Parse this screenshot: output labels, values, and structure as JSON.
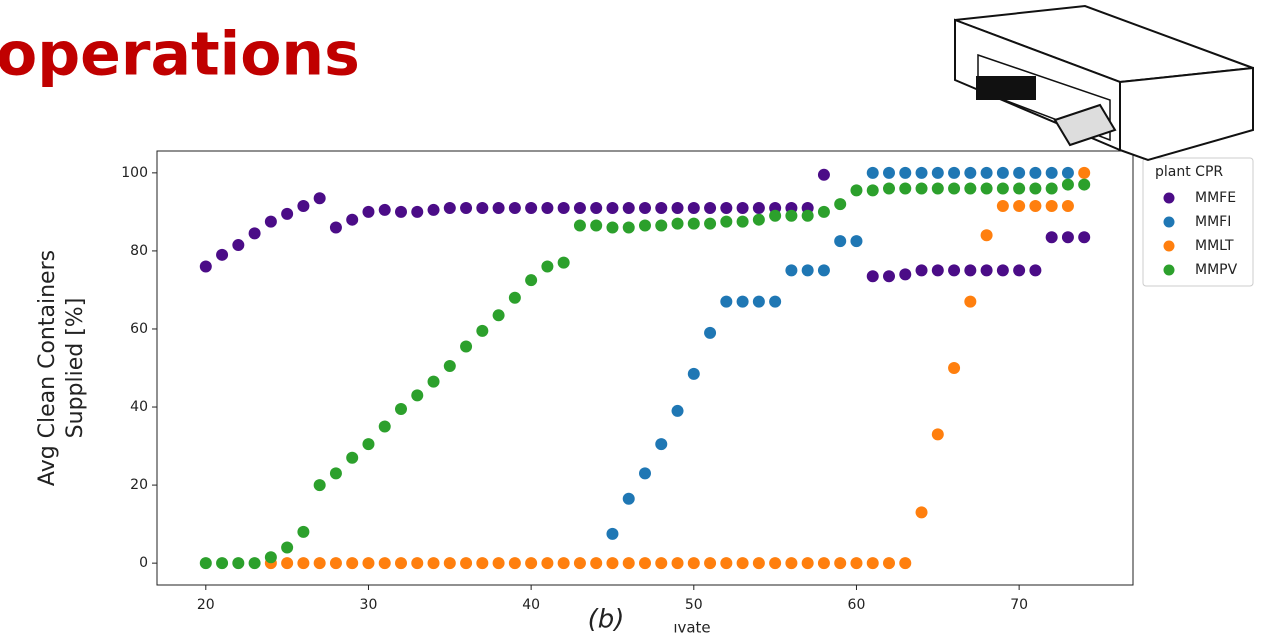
{
  "slide_title": "operations",
  "caption": "(b)",
  "chart_data": {
    "type": "scatter",
    "x_label": "ıvate",
    "y_label": [
      "Avg Clean Containers",
      "Supplied [%]"
    ],
    "legend_title": "plant CPR",
    "legend": "outside-right",
    "xlim": [
      17,
      77
    ],
    "ylim": [
      -5.6,
      105.6
    ],
    "xticks": [
      20,
      30,
      40,
      50,
      60,
      70
    ],
    "yticks": [
      0,
      20,
      40,
      60,
      80,
      100
    ],
    "series": [
      {
        "name": "MMFE",
        "color": "#4b0c87",
        "x": [
          20,
          21,
          22,
          23,
          24,
          25,
          26,
          27,
          28,
          29,
          30,
          31,
          32,
          33,
          34,
          35,
          36,
          37,
          38,
          39,
          40,
          41,
          42,
          43,
          44,
          45,
          46,
          47,
          48,
          49,
          50,
          51,
          52,
          53,
          54,
          55,
          56,
          57,
          58,
          61,
          62,
          63,
          64,
          65,
          66,
          67,
          68,
          69,
          70,
          71,
          72,
          73,
          74
        ],
        "values": [
          76,
          79,
          81.5,
          84.5,
          87.5,
          89.5,
          91.5,
          93.5,
          86,
          88,
          90,
          90.5,
          90,
          90,
          90.5,
          91,
          91,
          91,
          91,
          91,
          91,
          91,
          91,
          91,
          91,
          91,
          91,
          91,
          91,
          91,
          91,
          91,
          91,
          91,
          91,
          91,
          91,
          91,
          99.5,
          73.5,
          73.5,
          74,
          75,
          75,
          75,
          75,
          75,
          75,
          75,
          75,
          83.5,
          83.5,
          83.5
        ]
      },
      {
        "name": "MMFI",
        "color": "#1f77b4",
        "x": [
          45,
          46,
          47,
          48,
          49,
          50,
          51,
          52,
          53,
          54,
          55,
          56,
          57,
          58,
          59,
          60,
          61,
          62,
          63,
          64,
          65,
          66,
          67,
          68,
          69,
          70,
          71,
          72,
          73
        ],
        "values": [
          7.5,
          16.5,
          23,
          30.5,
          39,
          48.5,
          59,
          67,
          67,
          67,
          67,
          75,
          75,
          75,
          82.5,
          82.5,
          100,
          100,
          100,
          100,
          100,
          100,
          100,
          100,
          100,
          100,
          100,
          100,
          100
        ]
      },
      {
        "name": "MMLT",
        "color": "#ff7f0e",
        "x": [
          24,
          25,
          26,
          27,
          28,
          29,
          30,
          31,
          32,
          33,
          34,
          35,
          36,
          37,
          38,
          39,
          40,
          41,
          42,
          43,
          44,
          45,
          46,
          47,
          48,
          49,
          50,
          51,
          52,
          53,
          54,
          55,
          56,
          57,
          58,
          59,
          60,
          61,
          62,
          63,
          64,
          65,
          66,
          67,
          68,
          69,
          70,
          71,
          72,
          73,
          74
        ],
        "values": [
          0,
          0,
          0,
          0,
          0,
          0,
          0,
          0,
          0,
          0,
          0,
          0,
          0,
          0,
          0,
          0,
          0,
          0,
          0,
          0,
          0,
          0,
          0,
          0,
          0,
          0,
          0,
          0,
          0,
          0,
          0,
          0,
          0,
          0,
          0,
          0,
          0,
          0,
          0,
          0,
          13,
          33,
          50,
          67,
          84,
          91.5,
          91.5,
          91.5,
          91.5,
          91.5,
          100
        ]
      },
      {
        "name": "MMPV",
        "color": "#2ca02c",
        "x": [
          20,
          21,
          22,
          23,
          24,
          25,
          26,
          27,
          28,
          29,
          30,
          31,
          32,
          33,
          34,
          35,
          36,
          37,
          38,
          39,
          40,
          41,
          42,
          43,
          44,
          45,
          46,
          47,
          48,
          49,
          50,
          51,
          52,
          53,
          54,
          55,
          56,
          57,
          58,
          59,
          60,
          61,
          62,
          63,
          64,
          65,
          66,
          67,
          68,
          69,
          70,
          71,
          72,
          73,
          74
        ],
        "values": [
          0,
          0,
          0,
          0,
          1.5,
          4,
          8,
          20,
          23,
          27,
          30.5,
          35,
          39.5,
          43,
          46.5,
          50.5,
          55.5,
          59.5,
          63.5,
          68,
          72.5,
          76,
          77,
          86.5,
          86.5,
          86,
          86,
          86.5,
          86.5,
          87,
          87,
          87,
          87.5,
          87.5,
          88,
          89,
          89,
          89,
          90,
          92,
          95.5,
          95.5,
          96,
          96,
          96,
          96,
          96,
          96,
          96,
          96,
          96,
          96,
          96,
          97,
          97
        ]
      }
    ]
  }
}
